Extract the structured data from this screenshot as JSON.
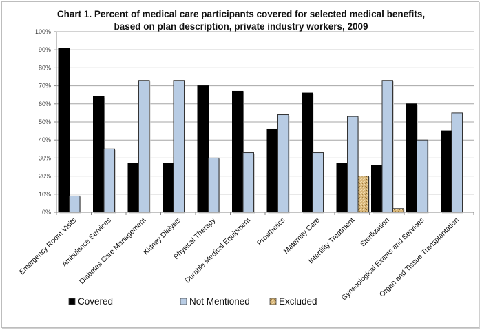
{
  "chart_data": {
    "type": "bar",
    "title_line1": "Chart 1. Percent of medical care participants covered for selected medical benefits,",
    "title_line2": "based on plan description, private industry workers, 2009",
    "xlabel": "",
    "ylabel": "",
    "ylim": [
      0,
      100
    ],
    "yticks": [
      "0%",
      "10%",
      "20%",
      "30%",
      "40%",
      "50%",
      "60%",
      "70%",
      "80%",
      "90%",
      "100%"
    ],
    "grid": true,
    "legend_position": "bottom",
    "categories": [
      "Emergency Room  Visits",
      "Ambulance Services",
      "Diabetes Care Management",
      "Kidney Dialysis",
      "Physical Therapy",
      "Durable Medical Equipment",
      "Prosthetics",
      "Maternity Care",
      "Infertility Treatment",
      "Sterilization",
      "Gynecological Exams and Services",
      "Organ and Tissue Transplantation"
    ],
    "series": [
      {
        "name": "Covered",
        "color": "#000000",
        "values": [
          91,
          64,
          27,
          27,
          70,
          67,
          46,
          66,
          27,
          26,
          60,
          45
        ]
      },
      {
        "name": "Not Mentioned",
        "color": "#b8cce4",
        "values": [
          9,
          35,
          73,
          73,
          30,
          33,
          54,
          33,
          53,
          73,
          40,
          55
        ]
      },
      {
        "name": "Excluded",
        "color": "#c8a46a",
        "values": [
          null,
          null,
          null,
          null,
          null,
          null,
          null,
          null,
          20,
          2,
          null,
          null
        ]
      }
    ]
  }
}
